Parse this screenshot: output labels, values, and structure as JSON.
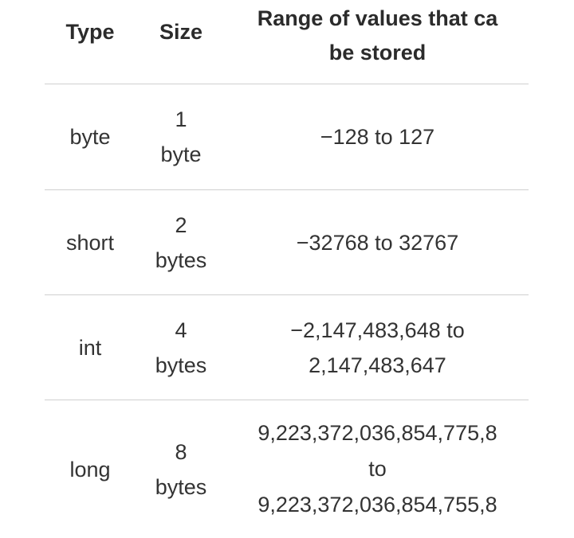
{
  "table": {
    "headers": {
      "type": "Type",
      "size": "Size",
      "range_line1": "Range of values that ca",
      "range_line2": "be stored"
    },
    "rows": [
      {
        "type": "byte",
        "size_num": "1",
        "size_unit": "byte",
        "range_lines": [
          "−128  to 127"
        ]
      },
      {
        "type": "short",
        "size_num": "2",
        "size_unit": "bytes",
        "range_lines": [
          "−32768  to 32767"
        ]
      },
      {
        "type": "int",
        "size_num": "4",
        "size_unit": "bytes",
        "range_lines": [
          "−2,147,483,648   to",
          "2,147,483,647"
        ]
      },
      {
        "type": "long",
        "size_num": "8",
        "size_unit": "bytes",
        "range_lines": [
          "9,223,372,036,854,775,8",
          "to",
          "9,223,372,036,854,755,8"
        ]
      }
    ]
  }
}
